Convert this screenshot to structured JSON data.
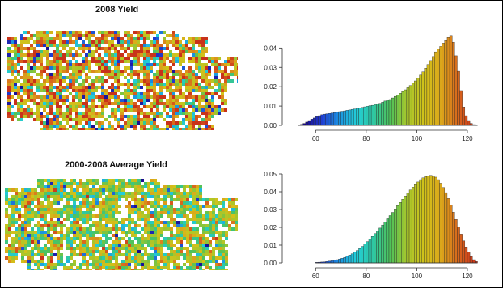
{
  "map_titles": [
    "2008 Yield",
    "2000-2008 Average Yield"
  ],
  "colors": {
    "palette": [
      "#1a0a8c",
      "#1f3bd0",
      "#1b8fe0",
      "#22cdd9",
      "#2ec7a2",
      "#4fc25a",
      "#a8c62b",
      "#d2c21a",
      "#dba51b",
      "#d9641c",
      "#c8321a"
    ],
    "axis": "#333333",
    "map_background": "#ffffff"
  },
  "maps": [
    {
      "name": "2008 Yield",
      "dominant_colors": [
        "orange",
        "yellow",
        "green",
        "cyan",
        "blue"
      ]
    },
    {
      "name": "2000-2008 Average Yield",
      "dominant_colors": [
        "yellow",
        "green",
        "cyan",
        "orange"
      ]
    }
  ],
  "chart_data": [
    {
      "type": "bar",
      "title": "",
      "xlabel": "",
      "ylabel": "",
      "xlim": [
        50,
        128
      ],
      "ylim": [
        0,
        0.046
      ],
      "x_ticks": [
        60,
        80,
        100,
        120
      ],
      "y_ticks": [
        0.0,
        0.01,
        0.02,
        0.03,
        0.04
      ],
      "y_tick_labels": [
        "0.00",
        "0.01",
        "0.02",
        "0.03",
        "0.04"
      ],
      "bin_width": 1,
      "bin_starts": [
        53,
        54,
        55,
        56,
        57,
        58,
        59,
        60,
        61,
        62,
        63,
        64,
        65,
        66,
        67,
        68,
        69,
        70,
        71,
        72,
        73,
        74,
        75,
        76,
        77,
        78,
        79,
        80,
        81,
        82,
        83,
        84,
        85,
        86,
        87,
        88,
        89,
        90,
        91,
        92,
        93,
        94,
        95,
        96,
        97,
        98,
        99,
        100,
        101,
        102,
        103,
        104,
        105,
        106,
        107,
        108,
        109,
        110,
        111,
        112,
        113,
        114,
        115,
        116,
        117,
        118,
        119,
        120,
        121,
        122,
        123
      ],
      "values": [
        0.0002,
        0.0005,
        0.001,
        0.0017,
        0.0025,
        0.0032,
        0.0038,
        0.0045,
        0.005,
        0.0055,
        0.0058,
        0.006,
        0.0062,
        0.0064,
        0.0066,
        0.0069,
        0.0071,
        0.0073,
        0.0075,
        0.0078,
        0.008,
        0.0083,
        0.0085,
        0.0088,
        0.009,
        0.0093,
        0.0096,
        0.0099,
        0.0102,
        0.0104,
        0.0107,
        0.011,
        0.0114,
        0.012,
        0.0126,
        0.013,
        0.0134,
        0.0142,
        0.015,
        0.0158,
        0.0166,
        0.0175,
        0.0184,
        0.0195,
        0.0206,
        0.0218,
        0.023,
        0.0244,
        0.026,
        0.0277,
        0.0296,
        0.0315,
        0.0335,
        0.0356,
        0.038,
        0.0395,
        0.0408,
        0.0425,
        0.0438,
        0.0455,
        0.0465,
        0.043,
        0.036,
        0.028,
        0.018,
        0.0095,
        0.005,
        0.0025,
        0.001,
        0.0004,
        0.0002
      ]
    },
    {
      "type": "bar",
      "title": "",
      "xlabel": "",
      "ylabel": "",
      "xlim": [
        50,
        128
      ],
      "ylim": [
        0,
        0.05
      ],
      "x_ticks": [
        60,
        80,
        100,
        120
      ],
      "y_ticks": [
        0.0,
        0.01,
        0.02,
        0.03,
        0.04,
        0.05
      ],
      "y_tick_labels": [
        "0.00",
        "0.01",
        "0.02",
        "0.03",
        "0.04",
        "0.05"
      ],
      "bin_width": 1,
      "bin_starts": [
        60,
        61,
        62,
        63,
        64,
        65,
        66,
        67,
        68,
        69,
        70,
        71,
        72,
        73,
        74,
        75,
        76,
        77,
        78,
        79,
        80,
        81,
        82,
        83,
        84,
        85,
        86,
        87,
        88,
        89,
        90,
        91,
        92,
        93,
        94,
        95,
        96,
        97,
        98,
        99,
        100,
        101,
        102,
        103,
        104,
        105,
        106,
        107,
        108,
        109,
        110,
        111,
        112,
        113,
        114,
        115,
        116,
        117,
        118,
        119,
        120,
        121,
        122,
        123
      ],
      "values": [
        0.0003,
        0.0004,
        0.0005,
        0.0006,
        0.0008,
        0.001,
        0.0012,
        0.0015,
        0.0018,
        0.0022,
        0.0026,
        0.0031,
        0.0037,
        0.0044,
        0.0051,
        0.006,
        0.007,
        0.0081,
        0.0093,
        0.0106,
        0.012,
        0.0134,
        0.0149,
        0.0165,
        0.018,
        0.0196,
        0.0213,
        0.023,
        0.0248,
        0.0266,
        0.0284,
        0.0303,
        0.0322,
        0.034,
        0.0358,
        0.0376,
        0.0393,
        0.041,
        0.0426,
        0.044,
        0.0455,
        0.0468,
        0.0478,
        0.0485,
        0.049,
        0.0492,
        0.049,
        0.0482,
        0.0468,
        0.0448,
        0.0424,
        0.0395,
        0.0362,
        0.0325,
        0.0285,
        0.0244,
        0.0202,
        0.0162,
        0.0124,
        0.009,
        0.006,
        0.0036,
        0.0018,
        0.0008
      ]
    }
  ]
}
